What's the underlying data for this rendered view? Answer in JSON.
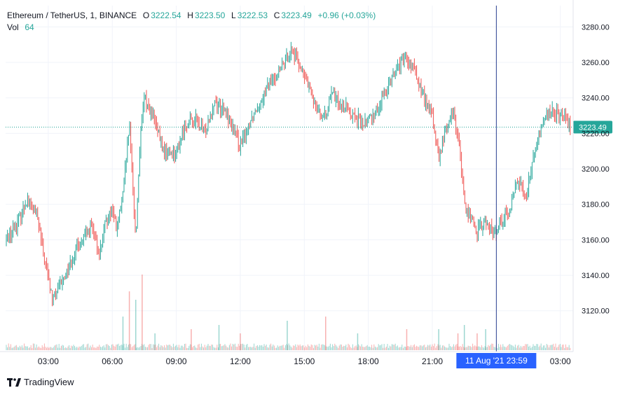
{
  "header": {
    "symbol": "Ethereum / TetherUS, 1, BINANCE",
    "o_label": "O",
    "o_value": "3222.54",
    "h_label": "H",
    "h_value": "3223.50",
    "l_label": "L",
    "l_value": "3222.53",
    "c_label": "C",
    "c_value": "3223.49",
    "change": "+0.96 (+0.03%)",
    "vol_label": "Vol",
    "vol_value": "64"
  },
  "cursor_label": "11 Aug '21   23:59",
  "last_price_label": "3223.49",
  "footer": {
    "brand": "TradingView"
  },
  "colors": {
    "up": "#26a69a",
    "down": "#ef5350",
    "crosshair": "#2a3f8f",
    "highlight": "#2962ff"
  },
  "chart_data": {
    "type": "line",
    "title": "Ethereum / TetherUS, 1, BINANCE",
    "price_ticks": [
      3280,
      3260,
      3240,
      3220,
      3200,
      3180,
      3160,
      3140,
      3120
    ],
    "price_tick_labels": [
      "3280.00",
      "3260.00",
      "3240.00",
      "3220.00",
      "3200.00",
      "3180.00",
      "3160.00",
      "3140.00",
      "3120.00"
    ],
    "time_ticks": [
      "03:00",
      "06:00",
      "09:00",
      "12:00",
      "15:00",
      "18:00",
      "21:00",
      "03:00"
    ],
    "time_tick_hours": [
      3,
      6,
      9,
      12,
      15,
      18,
      21,
      27
    ],
    "x_range_hours": [
      1.0,
      27.6
    ],
    "ylim": [
      3097,
      3292
    ],
    "last_price": 3223.49,
    "cursor_hour": 24.0,
    "grid": true,
    "series": [
      {
        "name": "ETHUSDT",
        "x_hours": [
          1.0,
          1.5,
          2.0,
          2.5,
          2.8,
          3.2,
          3.8,
          4.3,
          4.6,
          5.0,
          5.4,
          5.7,
          6.0,
          6.2,
          6.5,
          6.8,
          7.1,
          7.3,
          7.5,
          7.9,
          8.4,
          9.0,
          9.4,
          9.9,
          10.3,
          10.8,
          11.4,
          12.0,
          12.5,
          13.0,
          13.5,
          14.0,
          14.4,
          14.9,
          15.4,
          15.9,
          16.3,
          16.8,
          17.3,
          17.8,
          18.5,
          19.0,
          19.6,
          20.2,
          20.5,
          21.0,
          21.3,
          21.7,
          22.0,
          22.3,
          22.5,
          22.8,
          23.1,
          23.5,
          23.9,
          24.2,
          24.6,
          25.0,
          25.4,
          25.8,
          26.2,
          26.6,
          27.0,
          27.4,
          27.6
        ],
        "close": [
          3160,
          3168,
          3183,
          3172,
          3150,
          3126,
          3140,
          3155,
          3160,
          3168,
          3152,
          3170,
          3178,
          3165,
          3185,
          3225,
          3160,
          3215,
          3240,
          3230,
          3210,
          3208,
          3225,
          3228,
          3220,
          3238,
          3230,
          3212,
          3228,
          3240,
          3250,
          3258,
          3268,
          3255,
          3240,
          3228,
          3242,
          3236,
          3230,
          3225,
          3235,
          3250,
          3262,
          3255,
          3242,
          3230,
          3205,
          3225,
          3232,
          3210,
          3180,
          3172,
          3165,
          3170,
          3162,
          3172,
          3175,
          3195,
          3185,
          3210,
          3228,
          3232,
          3230,
          3225,
          3222
        ]
      }
    ],
    "volume": {
      "name": "Vol",
      "spike_hours": [
        6.5,
        6.8,
        7.1,
        7.4,
        8.0,
        9.7,
        11.0,
        12.0,
        14.2,
        16.0,
        17.5,
        19.8,
        21.3,
        22.2,
        22.5,
        23.1,
        23.5
      ],
      "spike_values": [
        8,
        14,
        12,
        18,
        4,
        5,
        6,
        4,
        7,
        8,
        4,
        5,
        5,
        4,
        6,
        4,
        5
      ]
    }
  }
}
